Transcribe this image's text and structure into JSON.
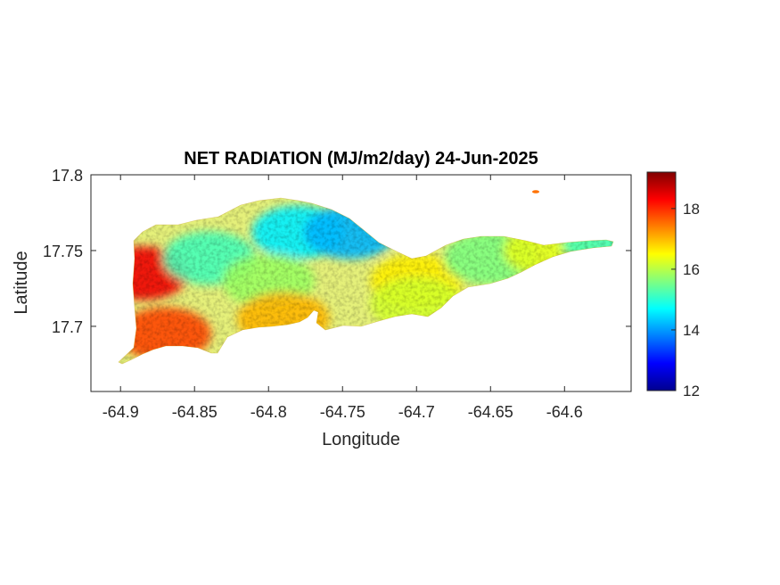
{
  "title": "NET RADIATION (MJ/m2/day) 24-Jun-2025",
  "xlabel": "Longitude",
  "ylabel": "Latitude",
  "colorbar": {
    "colormap": "jet",
    "range": [
      12,
      19.2
    ],
    "ticks": [
      {
        "value": 12,
        "label": "12"
      },
      {
        "value": 14,
        "label": "14"
      },
      {
        "value": 16,
        "label": "16"
      },
      {
        "value": 18,
        "label": "18"
      }
    ]
  },
  "chart_data": {
    "type": "heatmap",
    "title": "NET RADIATION (MJ/m2/day) 24-Jun-2025",
    "xlabel": "Longitude",
    "ylabel": "Latitude",
    "xlim": [
      -64.92,
      -64.555
    ],
    "ylim": [
      17.657,
      17.8
    ],
    "xticks": [
      {
        "value": -64.9,
        "label": "-64.9"
      },
      {
        "value": -64.85,
        "label": "-64.85"
      },
      {
        "value": -64.8,
        "label": "-64.8"
      },
      {
        "value": -64.75,
        "label": "-64.75"
      },
      {
        "value": -64.7,
        "label": "-64.7"
      },
      {
        "value": -64.65,
        "label": "-64.65"
      },
      {
        "value": -64.6,
        "label": "-64.6"
      }
    ],
    "yticks": [
      {
        "value": 17.7,
        "label": "17.7"
      },
      {
        "value": 17.75,
        "label": "17.75"
      },
      {
        "value": 17.8,
        "label": "17.8"
      }
    ],
    "value_range": [
      12,
      19.2
    ],
    "regions": [
      {
        "area": "west coast",
        "lon": -64.885,
        "lat": 17.735,
        "value": 18.4
      },
      {
        "area": "southwest",
        "lon": -64.87,
        "lat": 17.695,
        "value": 17.8
      },
      {
        "area": "west central",
        "lon": -64.84,
        "lat": 17.745,
        "value": 15.2
      },
      {
        "area": "north central",
        "lon": -64.78,
        "lat": 17.762,
        "value": 14.6
      },
      {
        "area": "northeast of center",
        "lon": -64.745,
        "lat": 17.762,
        "value": 14.2
      },
      {
        "area": "central",
        "lon": -64.8,
        "lat": 17.73,
        "value": 15.8
      },
      {
        "area": "south central",
        "lon": -64.79,
        "lat": 17.705,
        "value": 17.0
      },
      {
        "area": "east of center",
        "lon": -64.7,
        "lat": 17.73,
        "value": 16.6
      },
      {
        "area": "southeast",
        "lon": -64.7,
        "lat": 17.715,
        "value": 16.2
      },
      {
        "area": "east",
        "lon": -64.65,
        "lat": 17.745,
        "value": 15.6
      },
      {
        "area": "far east",
        "lon": -64.61,
        "lat": 17.75,
        "value": 16.3
      },
      {
        "area": "east tip",
        "lon": -64.57,
        "lat": 17.755,
        "value": 15.2
      },
      {
        "area": "islet",
        "lon": -64.622,
        "lat": 17.787,
        "value": 17.5
      }
    ]
  }
}
